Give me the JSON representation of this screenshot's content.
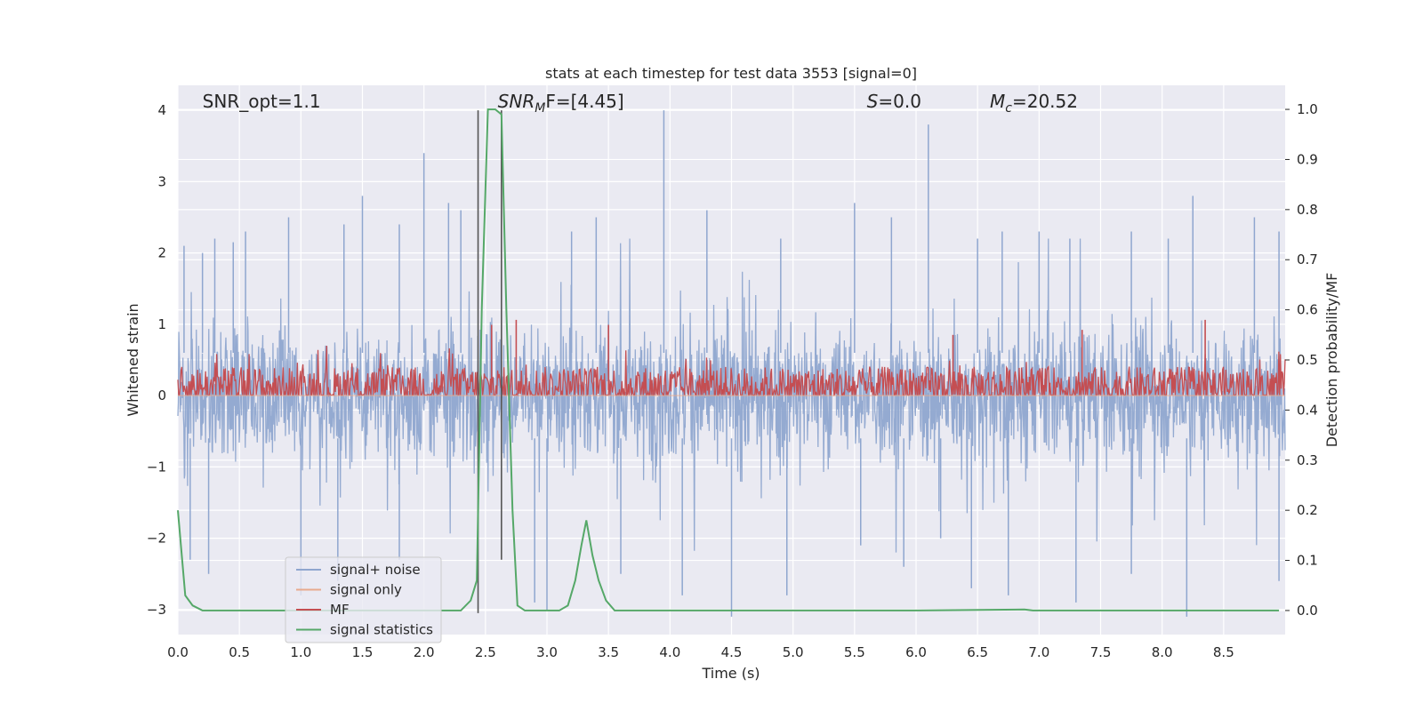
{
  "chart_data": {
    "type": "line",
    "title": "stats at each timestep for test data 3553 [signal=0]",
    "xlabel": "Time (s)",
    "ylabel": "Whitened strain",
    "y2label": "Detection probability/MF",
    "xlim": [
      0.0,
      9.0
    ],
    "ylim": [
      -3.35,
      4.35
    ],
    "y2lim": [
      -0.048,
      1.048
    ],
    "x_ticks": [
      0.0,
      0.5,
      1.0,
      1.5,
      2.0,
      2.5,
      3.0,
      3.5,
      4.0,
      4.5,
      5.0,
      5.5,
      6.0,
      6.5,
      7.0,
      7.5,
      8.0,
      8.5
    ],
    "x_tick_labels": [
      "0.0",
      "0.5",
      "1.0",
      "1.5",
      "2.0",
      "2.5",
      "3.0",
      "3.5",
      "4.0",
      "4.5",
      "5.0",
      "5.5",
      "6.0",
      "6.5",
      "7.0",
      "7.5",
      "8.0",
      "8.5"
    ],
    "y_ticks": [
      -3,
      -2,
      -1,
      0,
      1,
      2,
      3,
      4
    ],
    "y_tick_labels": [
      "−3",
      "−2",
      "−1",
      "0",
      "1",
      "2",
      "3",
      "4"
    ],
    "y2_ticks": [
      0.0,
      0.1,
      0.2,
      0.3,
      0.4,
      0.5,
      0.6,
      0.7,
      0.8,
      0.9,
      1.0
    ],
    "y2_tick_labels": [
      "0.0",
      "0.1",
      "0.2",
      "0.3",
      "0.4",
      "0.5",
      "0.6",
      "0.7",
      "0.8",
      "0.9",
      "1.0"
    ],
    "grid": true,
    "legend_position": "lower-left",
    "annotations": [
      {
        "text": "SNR_opt=1.1",
        "x": 0.2
      },
      {
        "text": "SNR",
        "sub": "M",
        "suffix": "F=[4.45]",
        "italic_main": true,
        "x": 2.6
      },
      {
        "text": "S",
        "sub": "",
        "suffix": "=0.0",
        "italic_main": true,
        "x": 5.6
      },
      {
        "text": "M",
        "sub": "c",
        "suffix": "=20.52",
        "italic_main": true,
        "x": 6.6
      }
    ],
    "vertical_markers": [
      {
        "x": 2.44,
        "y_from": -3.05,
        "y_to": 4.0,
        "color": "#555555"
      },
      {
        "x": 2.63,
        "y_from": -2.3,
        "y_to": 4.0,
        "color": "#555555"
      }
    ],
    "series": [
      {
        "name": "signal+ noise",
        "color": "#8fa6cf",
        "axis": "left",
        "render": "noise",
        "envelope_peaks": [
          [
            0.05,
            2.1
          ],
          [
            0.2,
            2.0
          ],
          [
            0.3,
            2.2
          ],
          [
            0.45,
            2.15
          ],
          [
            0.55,
            2.3
          ],
          [
            0.9,
            2.5
          ],
          [
            1.35,
            2.4
          ],
          [
            1.5,
            2.8
          ],
          [
            1.8,
            2.4
          ],
          [
            2.0,
            3.4
          ],
          [
            2.2,
            2.7
          ],
          [
            2.3,
            2.6
          ],
          [
            3.2,
            2.3
          ],
          [
            3.4,
            2.5
          ],
          [
            3.95,
            4.0
          ],
          [
            4.3,
            2.6
          ],
          [
            4.9,
            2.2
          ],
          [
            5.5,
            2.7
          ],
          [
            5.8,
            2.5
          ],
          [
            6.1,
            3.8
          ],
          [
            6.5,
            2.2
          ],
          [
            6.7,
            2.3
          ],
          [
            7.0,
            2.3
          ],
          [
            7.25,
            2.2
          ],
          [
            7.75,
            2.3
          ],
          [
            8.05,
            2.2
          ],
          [
            8.25,
            2.8
          ],
          [
            8.75,
            2.5
          ],
          [
            8.95,
            2.3
          ]
        ],
        "envelope_troughs": [
          [
            0.1,
            -2.3
          ],
          [
            0.25,
            -2.5
          ],
          [
            1.0,
            -2.8
          ],
          [
            1.3,
            -2.6
          ],
          [
            1.8,
            -2.3
          ],
          [
            2.9,
            -2.9
          ],
          [
            3.0,
            -3.0
          ],
          [
            3.6,
            -2.5
          ],
          [
            4.1,
            -2.8
          ],
          [
            4.5,
            -3.1
          ],
          [
            4.95,
            -2.8
          ],
          [
            5.55,
            -2.1
          ],
          [
            5.9,
            -2.4
          ],
          [
            6.2,
            -2.0
          ],
          [
            6.45,
            -2.7
          ],
          [
            6.75,
            -2.8
          ],
          [
            7.3,
            -2.9
          ],
          [
            7.75,
            -2.5
          ],
          [
            8.2,
            -3.1
          ],
          [
            8.95,
            -2.6
          ]
        ]
      },
      {
        "name": "signal only",
        "color": "#e8a98d",
        "axis": "left",
        "render": "flat",
        "value": 0.0
      },
      {
        "name": "MF",
        "color": "#c44e52",
        "axis": "right",
        "render": "mf",
        "baseline": 0.44,
        "band": [
          0.43,
          0.52
        ],
        "peaks": [
          [
            2.55,
            0.57
          ],
          [
            2.75,
            0.58
          ],
          [
            3.5,
            0.57
          ],
          [
            8.35,
            0.58
          ],
          [
            7.35,
            0.56
          ],
          [
            6.3,
            0.55
          ]
        ]
      },
      {
        "name": "signal statistics",
        "color": "#55a868",
        "axis": "right",
        "render": "line",
        "x": [
          0.0,
          0.06,
          0.12,
          0.2,
          0.3,
          0.5,
          1.0,
          1.5,
          2.0,
          2.3,
          2.38,
          2.43,
          2.47,
          2.52,
          2.58,
          2.63,
          2.67,
          2.72,
          2.76,
          2.82,
          3.0,
          3.1,
          3.17,
          3.23,
          3.28,
          3.32,
          3.37,
          3.42,
          3.48,
          3.55,
          3.7,
          4.0,
          5.0,
          6.0,
          6.88,
          6.95,
          7.5,
          8.0,
          8.5,
          8.95
        ],
        "y": [
          0.2,
          0.03,
          0.01,
          0.0,
          0.0,
          0.0,
          0.0,
          0.0,
          0.0,
          0.0,
          0.02,
          0.06,
          0.6,
          1.0,
          1.0,
          0.99,
          0.6,
          0.2,
          0.01,
          0.0,
          0.0,
          0.0,
          0.01,
          0.06,
          0.13,
          0.18,
          0.11,
          0.06,
          0.02,
          0.0,
          0.0,
          0.0,
          0.0,
          0.0,
          0.002,
          0.0,
          0.0,
          0.0,
          0.0,
          0.0
        ]
      }
    ]
  }
}
